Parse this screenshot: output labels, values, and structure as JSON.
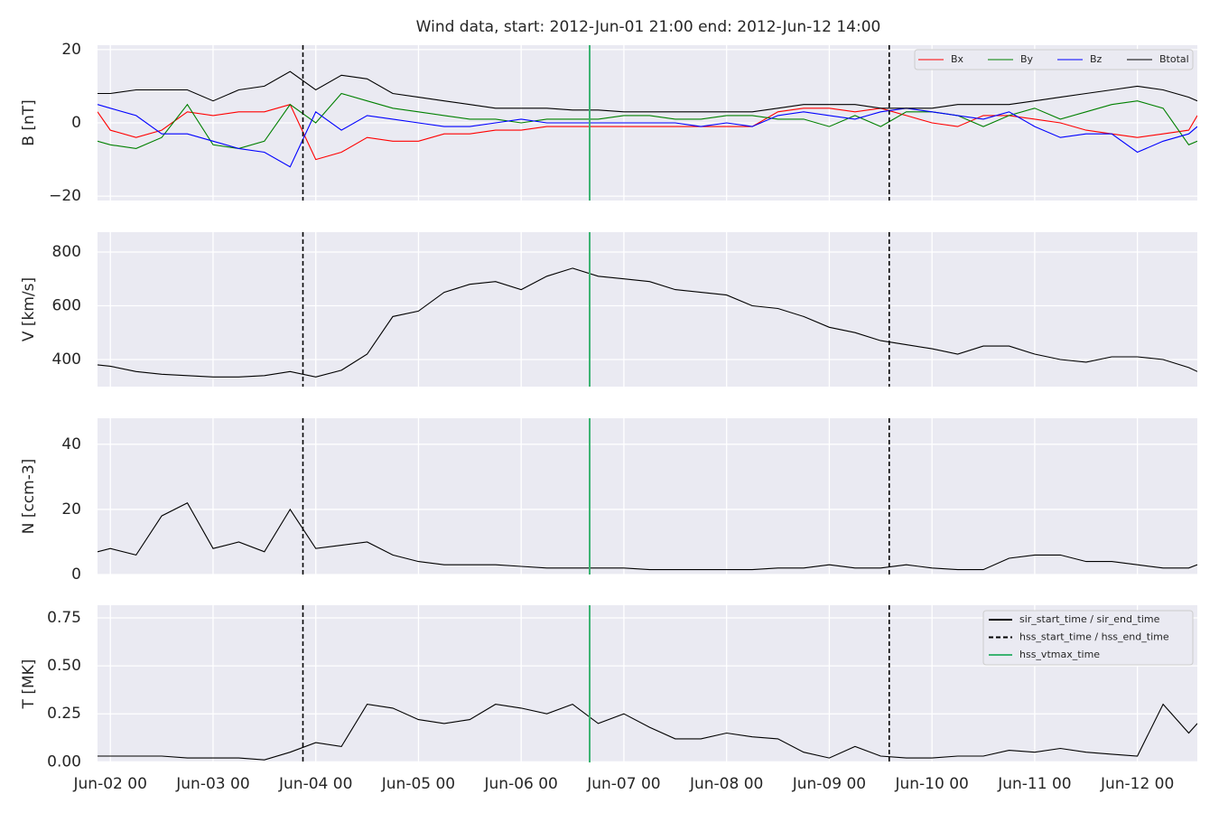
{
  "figure": {
    "title": "Wind data, start: 2012-Jun-01 21:00  end: 2012-Jun-12 14:00",
    "x": [
      "Jun-01 21",
      "Jun-02 00",
      "Jun-02 06",
      "Jun-02 12",
      "Jun-02 18",
      "Jun-03 00",
      "Jun-03 06",
      "Jun-03 12",
      "Jun-03 18",
      "Jun-04 00",
      "Jun-04 06",
      "Jun-04 12",
      "Jun-04 18",
      "Jun-05 00",
      "Jun-05 06",
      "Jun-05 12",
      "Jun-05 18",
      "Jun-06 00",
      "Jun-06 06",
      "Jun-06 12",
      "Jun-06 18",
      "Jun-07 00",
      "Jun-07 06",
      "Jun-07 12",
      "Jun-07 18",
      "Jun-08 00",
      "Jun-08 06",
      "Jun-08 12",
      "Jun-08 18",
      "Jun-09 00",
      "Jun-09 06",
      "Jun-09 12",
      "Jun-09 18",
      "Jun-10 00",
      "Jun-10 06",
      "Jun-10 12",
      "Jun-10 18",
      "Jun-11 00",
      "Jun-11 06",
      "Jun-11 12",
      "Jun-11 18",
      "Jun-12 00",
      "Jun-12 06",
      "Jun-12 12",
      "Jun-12 14"
    ],
    "xlim": [
      "Jun-01 21",
      "Jun-12 14"
    ],
    "xticks": [
      "Jun-02 00",
      "Jun-03 00",
      "Jun-04 00",
      "Jun-05 00",
      "Jun-06 00",
      "Jun-07 00",
      "Jun-08 00",
      "Jun-09 00",
      "Jun-10 00",
      "Jun-11 00",
      "Jun-12 00"
    ],
    "vertical_markers": [
      {
        "name": "sir_start_time / sir_end_time",
        "color": "#000000",
        "style": "solid",
        "x": []
      },
      {
        "name": "hss_start_time / hss_end_time",
        "color": "#000000",
        "style": "dashed",
        "x": [
          "Jun-03 21",
          "Jun-09 14"
        ]
      },
      {
        "name": "hss_vtmax_time",
        "color": "#3cb371",
        "style": "solid",
        "x": [
          "Jun-06 16"
        ]
      }
    ],
    "marker_legend": "upper right"
  },
  "chart_data": [
    {
      "type": "line",
      "ylabel": "B [nT]",
      "ylim": [
        -21.2,
        21.2
      ],
      "yticks": [
        {
          "value": -20,
          "label": "−20"
        },
        0,
        20
      ],
      "grid": true,
      "legend": "upper right",
      "series": [
        {
          "name": "Bx",
          "color": "#ff0000",
          "values": [
            3,
            -2,
            -4,
            -2,
            3,
            2,
            3,
            3,
            5,
            -10,
            -8,
            -4,
            -5,
            -5,
            -3,
            -3,
            -2,
            -2,
            -1,
            -1,
            -1,
            -1,
            -1,
            -1,
            -1,
            -1,
            -1,
            3,
            4,
            4,
            3,
            4,
            2,
            0,
            -1,
            2,
            2,
            1,
            0,
            -2,
            -3,
            -4,
            -3,
            -2,
            2
          ]
        },
        {
          "name": "By",
          "color": "#008000",
          "values": [
            -5,
            -6,
            -7,
            -4,
            5,
            -6,
            -7,
            -5,
            5,
            0,
            8,
            6,
            4,
            3,
            2,
            1,
            1,
            0,
            1,
            1,
            1,
            2,
            2,
            1,
            1,
            2,
            2,
            1,
            1,
            -1,
            2,
            -1,
            3,
            3,
            2,
            -1,
            2,
            4,
            1,
            3,
            5,
            6,
            4,
            -6,
            -5
          ]
        },
        {
          "name": "Bz",
          "color": "#0000ff",
          "values": [
            5,
            4,
            2,
            -3,
            -3,
            -5,
            -7,
            -8,
            -12,
            3,
            -2,
            2,
            1,
            0,
            -1,
            -1,
            0,
            1,
            0,
            0,
            0,
            0,
            0,
            0,
            -1,
            0,
            -1,
            2,
            3,
            2,
            1,
            3,
            4,
            3,
            2,
            1,
            3,
            -1,
            -4,
            -3,
            -3,
            -8,
            -5,
            -3,
            -1
          ]
        },
        {
          "name": "Btotal",
          "color": "#000000",
          "values": [
            8,
            8,
            9,
            9,
            9,
            6,
            9,
            10,
            14,
            9,
            13,
            12,
            8,
            7,
            6,
            5,
            4,
            4,
            4,
            3.5,
            3.5,
            3,
            3,
            3,
            3,
            3,
            3,
            4,
            5,
            5,
            5,
            4,
            4,
            4,
            5,
            5,
            5,
            6,
            7,
            8,
            9,
            10,
            9,
            7,
            6
          ]
        }
      ]
    },
    {
      "type": "line",
      "ylabel": "V [km/s]",
      "ylim": [
        299,
        874
      ],
      "yticks": [
        400,
        600,
        800
      ],
      "grid": true,
      "series": [
        {
          "color": "#000000",
          "values": [
            380,
            375,
            355,
            345,
            340,
            335,
            335,
            340,
            355,
            335,
            360,
            420,
            560,
            580,
            650,
            680,
            690,
            660,
            710,
            740,
            710,
            700,
            690,
            660,
            650,
            640,
            600,
            590,
            560,
            520,
            500,
            470,
            455,
            440,
            420,
            450,
            450,
            420,
            400,
            390,
            410,
            410,
            400,
            370,
            355
          ]
        }
      ]
    },
    {
      "type": "line",
      "ylabel": "N [ccm-3]",
      "ylim": [
        0,
        48
      ],
      "yticks": [
        0,
        20,
        40
      ],
      "grid": true,
      "series": [
        {
          "color": "#000000",
          "values": [
            7,
            8,
            6,
            18,
            22,
            8,
            10,
            7,
            20,
            8,
            9,
            10,
            6,
            4,
            3,
            3,
            3,
            2.5,
            2,
            2,
            2,
            2,
            1.5,
            1.5,
            1.5,
            1.5,
            1.5,
            2,
            2,
            3,
            2,
            2,
            3,
            2,
            1.5,
            1.5,
            5,
            6,
            6,
            4,
            4,
            3,
            2,
            2,
            3
          ]
        }
      ]
    },
    {
      "type": "line",
      "ylabel": "T [MK]",
      "ylim": [
        -0.003,
        0.816
      ],
      "yticks": [
        {
          "value": 0,
          "label": "0.00"
        },
        {
          "value": 0.25,
          "label": "0.25"
        },
        {
          "value": 0.5,
          "label": "0.50"
        },
        {
          "value": 0.75,
          "label": "0.75"
        }
      ],
      "grid": true,
      "series": [
        {
          "color": "#000000",
          "values": [
            0.03,
            0.03,
            0.03,
            0.03,
            0.02,
            0.02,
            0.02,
            0.01,
            0.05,
            0.1,
            0.08,
            0.3,
            0.28,
            0.22,
            0.2,
            0.22,
            0.3,
            0.28,
            0.25,
            0.3,
            0.2,
            0.25,
            0.18,
            0.12,
            0.12,
            0.15,
            0.13,
            0.12,
            0.05,
            0.02,
            0.08,
            0.03,
            0.02,
            0.02,
            0.03,
            0.03,
            0.06,
            0.05,
            0.07,
            0.05,
            0.04,
            0.03,
            0.3,
            0.15,
            0.2
          ]
        }
      ]
    }
  ]
}
